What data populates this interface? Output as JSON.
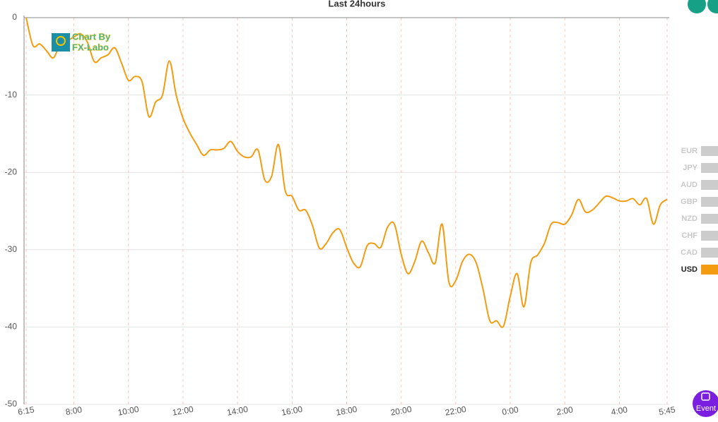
{
  "chart_data": {
    "type": "line",
    "title": "Last 24hours",
    "watermark": [
      "Chart By",
      "FX-Labo"
    ],
    "button_label": "Event",
    "categories": [
      "6:15",
      null,
      null,
      null,
      null,
      null,
      null,
      "8:00",
      null,
      null,
      null,
      null,
      null,
      null,
      null,
      "10:00",
      null,
      null,
      null,
      null,
      null,
      null,
      null,
      "12:00",
      null,
      null,
      null,
      null,
      null,
      null,
      null,
      "14:00",
      null,
      null,
      null,
      null,
      null,
      null,
      null,
      "16:00",
      null,
      null,
      null,
      null,
      null,
      null,
      null,
      "18:00",
      null,
      null,
      null,
      null,
      null,
      null,
      null,
      "20:00",
      null,
      null,
      null,
      null,
      null,
      null,
      null,
      "22:00",
      null,
      null,
      null,
      null,
      null,
      null,
      null,
      "0:00",
      null,
      null,
      null,
      null,
      null,
      null,
      null,
      "2:00",
      null,
      null,
      null,
      null,
      null,
      null,
      null,
      "4:00",
      null,
      null,
      null,
      null,
      null,
      null,
      "5:45"
    ],
    "series": [
      {
        "name": "EUR",
        "color": "#cccccc",
        "hidden": true
      },
      {
        "name": "JPY",
        "color": "#cccccc",
        "hidden": true
      },
      {
        "name": "AUD",
        "color": "#cccccc",
        "hidden": true
      },
      {
        "name": "GBP",
        "color": "#cccccc",
        "hidden": true
      },
      {
        "name": "NZD",
        "color": "#cccccc",
        "hidden": true
      },
      {
        "name": "CHF",
        "color": "#cccccc",
        "hidden": true
      },
      {
        "name": "CAD",
        "color": "#cccccc",
        "hidden": true
      },
      {
        "name": "USD",
        "color": "#f39c12",
        "values": [
          0,
          -3.6,
          -3.4,
          -4.3,
          -5.2,
          -3.4,
          -3,
          -2.5,
          -2.1,
          -3.2,
          -5.7,
          -5.2,
          -4.8,
          -3.9,
          -5.9,
          -8.1,
          -7.6,
          -8.3,
          -12.8,
          -10.9,
          -10,
          -5.6,
          -10,
          -13,
          -14.9,
          -16.4,
          -17.8,
          -17.1,
          -17.1,
          -16.9,
          -16,
          -17.3,
          -18,
          -18,
          -17.1,
          -21,
          -20.5,
          -16.4,
          -22.4,
          -23.1,
          -24.9,
          -24.9,
          -26.9,
          -29.8,
          -29.2,
          -27.8,
          -27.4,
          -29.7,
          -31.7,
          -32.2,
          -29.5,
          -29.2,
          -29.7,
          -27.1,
          -26.7,
          -30.6,
          -33.1,
          -31.5,
          -28.9,
          -30.4,
          -31.7,
          -26.7,
          -34.2,
          -34,
          -31.5,
          -30.6,
          -31.7,
          -35.1,
          -39.2,
          -39.2,
          -39.9,
          -36,
          -33.1,
          -37.4,
          -31.7,
          -30.7,
          -29.2,
          -26.7,
          -26.5,
          -26.7,
          -25.5,
          -23.5,
          -25.1,
          -24.9,
          -24,
          -23.1,
          -23.3,
          -23.7,
          -23.7,
          -23.4,
          -24.2,
          -23.4,
          -26.7,
          -24.2,
          -23.5
        ]
      }
    ],
    "ylim": [
      -50,
      0
    ],
    "yticks": [
      0,
      -10,
      -20,
      -30,
      -40,
      -50
    ],
    "grid": true
  }
}
